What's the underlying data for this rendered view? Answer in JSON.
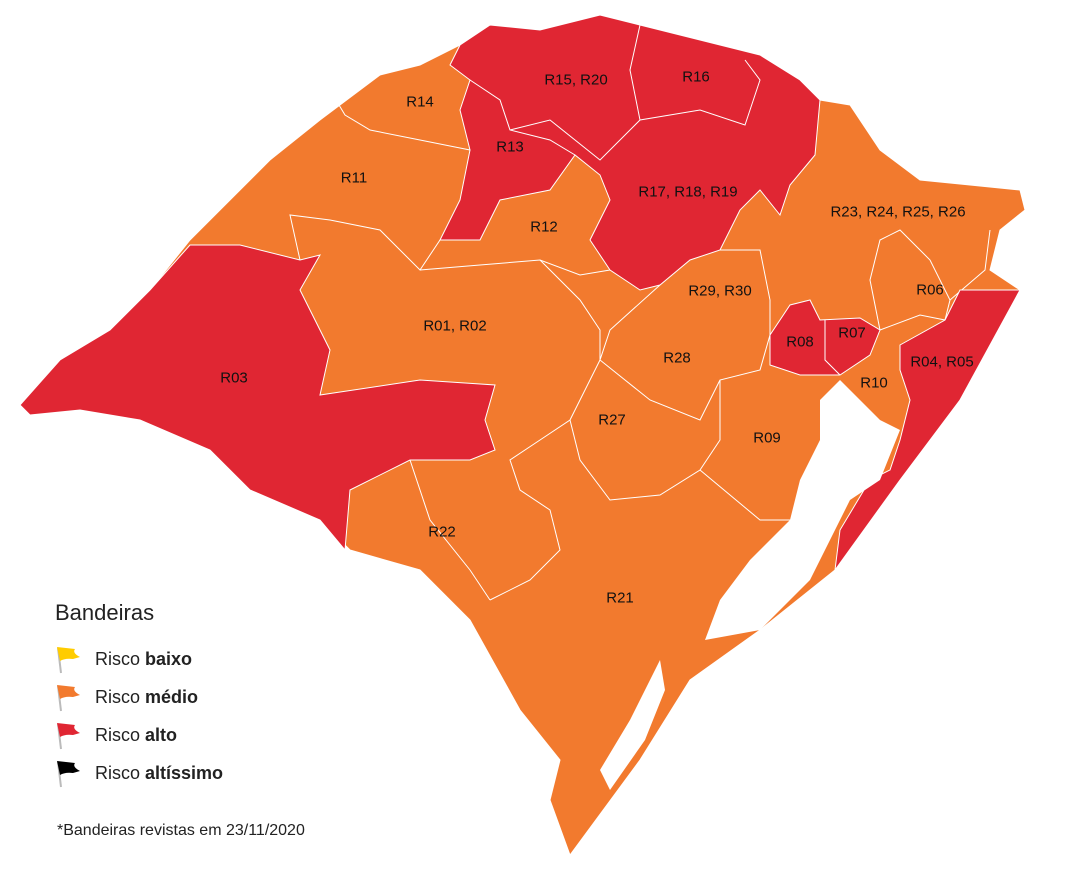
{
  "colors": {
    "baixo": "#FFCC00",
    "medio": "#F27A2E",
    "alto": "#E02633",
    "altissimo": "#000000",
    "border": "#FFFFFF"
  },
  "regions": [
    {
      "label": "R14",
      "risk": "medio"
    },
    {
      "label": "R15, R20",
      "risk": "alto"
    },
    {
      "label": "R16",
      "risk": "alto"
    },
    {
      "label": "R13",
      "risk": "alto"
    },
    {
      "label": "R11",
      "risk": "medio"
    },
    {
      "label": "R17, R18, R19",
      "risk": "alto"
    },
    {
      "label": "R12",
      "risk": "medio"
    },
    {
      "label": "R23, R24, R25, R26",
      "risk": "medio"
    },
    {
      "label": "R06",
      "risk": "medio"
    },
    {
      "label": "R29, R30",
      "risk": "medio"
    },
    {
      "label": "R01, R02",
      "risk": "medio"
    },
    {
      "label": "R08",
      "risk": "alto"
    },
    {
      "label": "R07",
      "risk": "alto"
    },
    {
      "label": "R04, R05",
      "risk": "alto"
    },
    {
      "label": "R03",
      "risk": "alto"
    },
    {
      "label": "R28",
      "risk": "medio"
    },
    {
      "label": "R10",
      "risk": "medio"
    },
    {
      "label": "R27",
      "risk": "medio"
    },
    {
      "label": "R09",
      "risk": "medio"
    },
    {
      "label": "R22",
      "risk": "medio"
    },
    {
      "label": "R21",
      "risk": "medio"
    }
  ],
  "legend": {
    "title": "Bandeiras",
    "items": [
      {
        "prefix": "Risco",
        "level": "baixo",
        "color": "#FFCC00"
      },
      {
        "prefix": "Risco",
        "level": "médio",
        "color": "#F27A2E"
      },
      {
        "prefix": "Risco",
        "level": "alto",
        "color": "#E02633"
      },
      {
        "prefix": "Risco",
        "level": "altíssimo",
        "color": "#000000"
      }
    ]
  },
  "note": "*Bandeiras revistas em 23/11/2020"
}
